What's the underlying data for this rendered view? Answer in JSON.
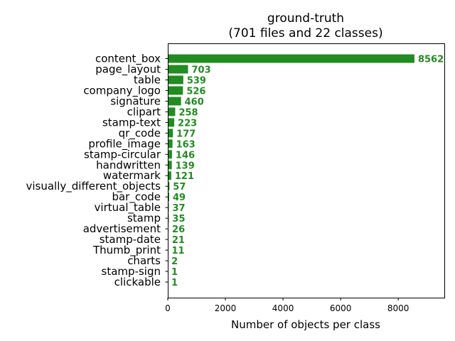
{
  "chart_data": {
    "type": "bar",
    "orientation": "horizontal",
    "title": "ground-truth",
    "subtitle": "(701 files and 22 classes)",
    "xlabel": "Number of objects per class",
    "ylabel": "",
    "xlim": [
      0,
      9600
    ],
    "xticks": [
      0,
      2000,
      4000,
      6000,
      8000
    ],
    "xtick_labels": [
      "0",
      "2000",
      "4000",
      "6000",
      "8000"
    ],
    "grid": false,
    "bar_color": "#228b22",
    "label_color": "#228b22",
    "categories": [
      "content_box",
      "page_layout",
      "table",
      "company_logo",
      "signature",
      "clipart",
      "stamp-text",
      "qr_code",
      "profile_image",
      "stamp-circular",
      "handwritten",
      "watermark",
      "visually_different_objects",
      "bar_code",
      "virtual_table",
      "stamp",
      "advertisement",
      "stamp-date",
      "Thumb_print",
      "charts",
      "stamp-sign",
      "clickable"
    ],
    "values": [
      8562,
      703,
      539,
      526,
      460,
      258,
      223,
      177,
      163,
      146,
      139,
      121,
      57,
      49,
      37,
      35,
      26,
      21,
      11,
      2,
      1,
      1
    ],
    "value_labels": [
      "8562",
      "703",
      "539",
      "526",
      "460",
      "258",
      "223",
      "177",
      "163",
      "146",
      "139",
      "121",
      "57",
      "49",
      "37",
      "35",
      "26",
      "21",
      "11",
      "2",
      "1",
      "1"
    ]
  }
}
